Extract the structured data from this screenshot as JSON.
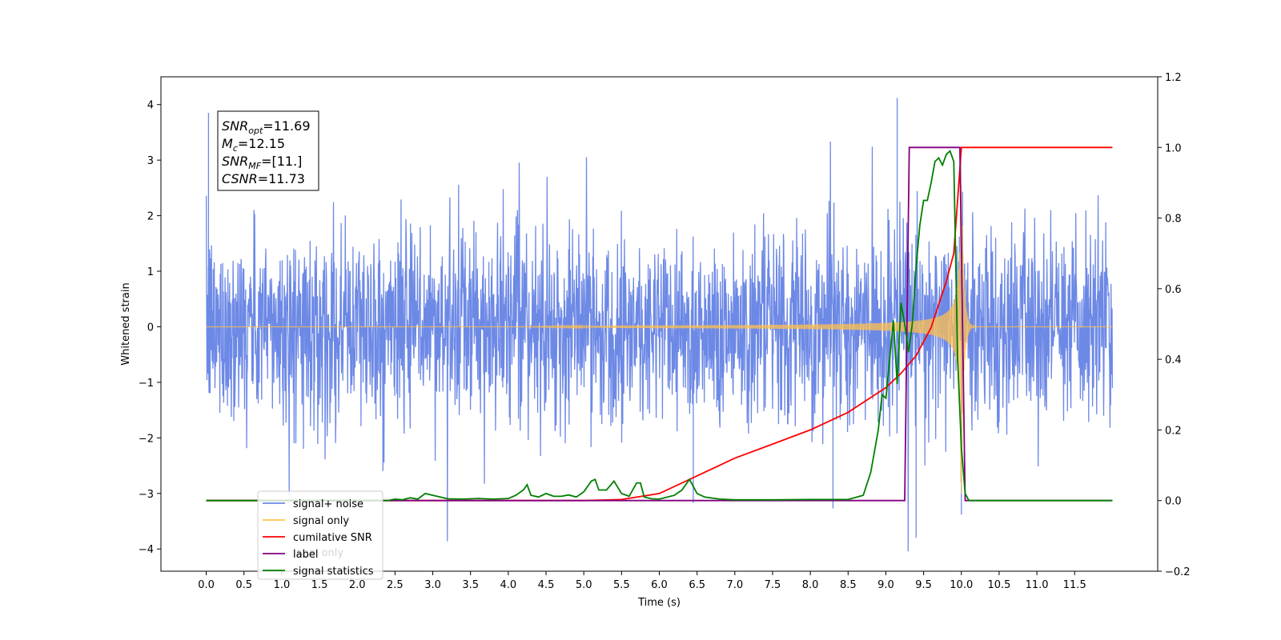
{
  "chart_data": {
    "type": "line",
    "xlabel": "Time (s)",
    "ylabel": "Whitened strain",
    "xlim": [
      -0.6,
      12.6
    ],
    "ylim_left": [
      -4.4,
      4.5
    ],
    "ylim_right": [
      -0.2,
      1.2
    ],
    "x_ticks": [
      "0.0",
      "0.5",
      "1.0",
      "1.5",
      "2.0",
      "2.5",
      "3.0",
      "3.5",
      "4.0",
      "4.5",
      "5.0",
      "5.5",
      "6.0",
      "6.5",
      "7.0",
      "7.5",
      "8.0",
      "8.5",
      "9.0",
      "9.5",
      "10.0",
      "10.5",
      "11.0",
      "11.5"
    ],
    "y_ticks_left": [
      "4",
      "3",
      "2",
      "1",
      "0",
      "−1",
      "−2",
      "−3",
      "−4"
    ],
    "y_ticks_right": [
      "1.2",
      "1.0",
      "0.8",
      "0.6",
      "0.4",
      "0.2",
      "0.0",
      "−0.2"
    ],
    "annotation": {
      "lines": [
        {
          "sym": "SNR",
          "sub": "opt",
          "rest": "=11.69"
        },
        {
          "sym": "M",
          "sub": "c",
          "rest": "=12.15"
        },
        {
          "sym": "SNR",
          "sub": "MF",
          "rest": "=[11.]"
        },
        {
          "sym": "CSNR",
          "sub": "",
          "rest": "=11.73"
        }
      ]
    },
    "legend": [
      {
        "label": "signal+ noise",
        "color": "#6d89e6"
      },
      {
        "label": "signal only",
        "color": "#ffc04d"
      },
      {
        "label": "cumilative SNR",
        "color": "#ff0000"
      },
      {
        "label": "label",
        "color": "#800080"
      },
      {
        "label": "signal statistics",
        "color": "#008000"
      }
    ],
    "legend_hidden_text": "label only",
    "series": [
      {
        "name": "signal+ noise",
        "axis": "left",
        "color": "#6d89e6",
        "x_range": [
          0,
          12.0
        ],
        "noise_std": 0.85,
        "notable_points": [
          [
            0.03,
            3.85
          ],
          [
            9.15,
            4.12
          ],
          [
            9.4,
            -3.8
          ],
          [
            10.0,
            -3.38
          ],
          [
            6.45,
            -3.17
          ],
          [
            8.3,
            -3.27
          ]
        ]
      },
      {
        "name": "signal only",
        "axis": "left",
        "color": "#ffc04d",
        "x_range": [
          0,
          12.0
        ],
        "merger_time": 10.0,
        "peak_amplitude": 3.0
      },
      {
        "name": "cumilative SNR",
        "axis": "right",
        "color": "#ff0000",
        "x": [
          0,
          5.0,
          5.5,
          6.0,
          6.5,
          7.0,
          7.5,
          8.0,
          8.5,
          9.0,
          9.2,
          9.4,
          9.6,
          9.8,
          9.9,
          10.0,
          12.0
        ],
        "y": [
          0,
          0,
          0.003,
          0.02,
          0.07,
          0.12,
          0.16,
          0.2,
          0.25,
          0.32,
          0.36,
          0.41,
          0.49,
          0.62,
          0.7,
          1.0,
          1.0
        ]
      },
      {
        "name": "label",
        "axis": "right",
        "color": "#800080",
        "x": [
          0,
          9.25,
          9.31,
          9.98,
          10.05,
          12.0
        ],
        "y": [
          0,
          0,
          1.0,
          1.0,
          0,
          0
        ]
      },
      {
        "name": "signal statistics",
        "axis": "right",
        "color": "#008000",
        "x": [
          0,
          2.4,
          2.5,
          2.6,
          2.7,
          2.8,
          2.9,
          3.0,
          3.2,
          3.4,
          3.6,
          3.8,
          4.0,
          4.1,
          4.2,
          4.25,
          4.3,
          4.4,
          4.5,
          4.6,
          4.7,
          4.8,
          4.9,
          5.0,
          5.1,
          5.15,
          5.2,
          5.3,
          5.4,
          5.5,
          5.6,
          5.7,
          5.75,
          5.8,
          5.9,
          6.0,
          6.2,
          6.3,
          6.4,
          6.5,
          6.6,
          6.8,
          7.0,
          7.5,
          8.0,
          8.5,
          8.7,
          8.8,
          8.9,
          8.95,
          9.0,
          9.05,
          9.1,
          9.15,
          9.2,
          9.25,
          9.3,
          9.35,
          9.4,
          9.45,
          9.5,
          9.55,
          9.6,
          9.65,
          9.7,
          9.75,
          9.8,
          9.85,
          9.9,
          9.95,
          10.0,
          10.05,
          10.1,
          12.0
        ],
        "y": [
          0,
          0,
          0.004,
          0.002,
          0.008,
          0.004,
          0.02,
          0.015,
          0.005,
          0.004,
          0.006,
          0.004,
          0.006,
          0.015,
          0.03,
          0.045,
          0.015,
          0.01,
          0.02,
          0.012,
          0.012,
          0.016,
          0.01,
          0.025,
          0.055,
          0.06,
          0.03,
          0.03,
          0.055,
          0.02,
          0.012,
          0.05,
          0.05,
          0.01,
          0.005,
          0.004,
          0.015,
          0.03,
          0.06,
          0.02,
          0.01,
          0.004,
          0.002,
          0.002,
          0.003,
          0.003,
          0.015,
          0.08,
          0.2,
          0.3,
          0.29,
          0.4,
          0.51,
          0.33,
          0.56,
          0.5,
          0.42,
          0.5,
          0.66,
          0.78,
          0.85,
          0.85,
          0.9,
          0.96,
          0.97,
          0.95,
          0.98,
          0.99,
          0.96,
          0.4,
          0.15,
          0.02,
          0.0,
          0.0
        ]
      }
    ]
  }
}
